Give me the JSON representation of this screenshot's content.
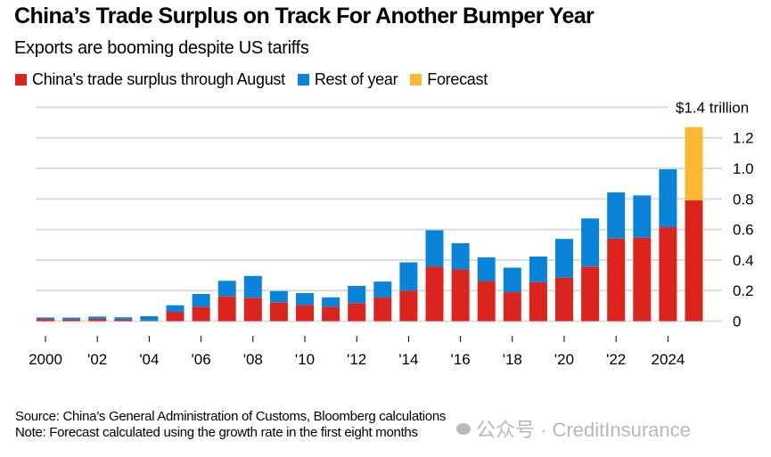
{
  "header": {
    "title": "China’s Trade Surplus on Track For Another Bumper Year",
    "subtitle": "Exports are booming despite US tariffs"
  },
  "legend": [
    {
      "label": "China's trade surplus through August",
      "color": "#dc241f"
    },
    {
      "label": "Rest of year",
      "color": "#0a84d8"
    },
    {
      "label": "Forecast",
      "color": "#fbb832"
    }
  ],
  "footer": {
    "source": "Source: China’s General Administration of Customs, Bloomberg calculations",
    "note": "Note: Forecast calculated using the growth rate in the first eight months"
  },
  "watermark": {
    "text": "公众号 · CreditInsurance",
    "icon": "wechat-icon"
  },
  "chart_data": {
    "type": "bar",
    "stacked": true,
    "title": "China’s Trade Surplus on Track For Another Bumper Year",
    "subtitle": "Exports are booming despite US tariffs",
    "xlabel": "",
    "ylabel": "$ trillion",
    "ylim": [
      0,
      1.4
    ],
    "yticks": [
      0,
      0.2,
      0.4,
      0.6,
      0.8,
      1.0,
      1.2,
      1.4
    ],
    "ytick_labels": [
      "0",
      "0.2",
      "0.4",
      "0.6",
      "0.8",
      "1.0",
      "1.2",
      "$1.4 trillion"
    ],
    "y_axis_side": "right",
    "grid": true,
    "legend_position": "top-left",
    "categories": [
      "2000",
      "2001",
      "2002",
      "2003",
      "2004",
      "2005",
      "2006",
      "2007",
      "2008",
      "2009",
      "2010",
      "2011",
      "2012",
      "2013",
      "2014",
      "2015",
      "2016",
      "2017",
      "2018",
      "2019",
      "2020",
      "2021",
      "2022",
      "2023",
      "2024",
      "2025"
    ],
    "xtick_labels": [
      {
        "category": "2000",
        "label": "2000"
      },
      {
        "category": "2002",
        "label": "'02"
      },
      {
        "category": "2004",
        "label": "'04"
      },
      {
        "category": "2006",
        "label": "'06"
      },
      {
        "category": "2008",
        "label": "'08"
      },
      {
        "category": "2010",
        "label": "'10"
      },
      {
        "category": "2012",
        "label": "'12"
      },
      {
        "category": "2014",
        "label": "'14"
      },
      {
        "category": "2016",
        "label": "'16"
      },
      {
        "category": "2018",
        "label": "'18"
      },
      {
        "category": "2020",
        "label": "'20"
      },
      {
        "category": "2022",
        "label": "'22"
      },
      {
        "category": "2024",
        "label": "2024"
      }
    ],
    "series": [
      {
        "name": "China's trade surplus through August",
        "color": "#dc241f",
        "values": [
          0.014,
          0.011,
          0.015,
          0.009,
          0.002,
          0.061,
          0.094,
          0.162,
          0.153,
          0.124,
          0.106,
          0.094,
          0.118,
          0.154,
          0.2,
          0.358,
          0.338,
          0.262,
          0.189,
          0.255,
          0.285,
          0.357,
          0.541,
          0.547,
          0.615,
          0.79
        ]
      },
      {
        "name": "Rest of year",
        "color": "#0a84d8",
        "values": [
          0.01,
          0.012,
          0.015,
          0.016,
          0.03,
          0.043,
          0.084,
          0.102,
          0.143,
          0.073,
          0.078,
          0.062,
          0.113,
          0.105,
          0.185,
          0.237,
          0.172,
          0.156,
          0.161,
          0.168,
          0.253,
          0.315,
          0.302,
          0.276,
          0.379,
          0
        ]
      },
      {
        "name": "Forecast",
        "color": "#fbb832",
        "values": [
          0,
          0,
          0,
          0,
          0,
          0,
          0,
          0,
          0,
          0,
          0,
          0,
          0,
          0,
          0,
          0,
          0,
          0,
          0,
          0,
          0,
          0,
          0,
          0,
          0,
          0.48
        ]
      }
    ]
  }
}
